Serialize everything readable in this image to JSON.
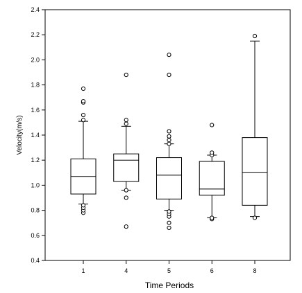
{
  "chart_data": {
    "type": "boxplot",
    "xlabel": "Time Periods",
    "ylabel": "Velocity(m/s)",
    "ylim": [
      0.4,
      2.4
    ],
    "yticks": [
      "0.4",
      "0.6",
      "0.8",
      "1.0",
      "1.2",
      "1.4",
      "1.6",
      "1.8",
      "2.0",
      "2.2",
      "2.4"
    ],
    "categories": [
      "1",
      "4",
      "5",
      "6",
      "8"
    ],
    "boxes": [
      {
        "category": "1",
        "whisker_low": 0.85,
        "q1": 0.93,
        "median": 1.07,
        "q3": 1.21,
        "whisker_high": 1.51,
        "outliers": [
          0.78,
          0.8,
          0.82,
          0.84,
          1.52,
          1.56,
          1.66,
          1.67,
          1.77
        ]
      },
      {
        "category": "4",
        "whisker_low": 0.96,
        "q1": 1.03,
        "median": 1.2,
        "q3": 1.25,
        "whisker_high": 1.47,
        "outliers": [
          0.67,
          0.9,
          0.96,
          1.49,
          1.52,
          1.88
        ]
      },
      {
        "category": "5",
        "whisker_low": 0.8,
        "q1": 0.89,
        "median": 1.08,
        "q3": 1.22,
        "whisker_high": 1.33,
        "outliers": [
          0.66,
          0.7,
          0.75,
          0.77,
          0.79,
          1.33,
          1.36,
          1.39,
          1.43,
          1.88,
          2.04
        ]
      },
      {
        "category": "6",
        "whisker_low": 0.74,
        "q1": 0.92,
        "median": 0.97,
        "q3": 1.19,
        "whisker_high": 1.24,
        "outliers": [
          0.73,
          0.74,
          1.24,
          1.26,
          1.48
        ]
      },
      {
        "category": "8",
        "whisker_low": 0.75,
        "q1": 0.84,
        "median": 1.1,
        "q3": 1.38,
        "whisker_high": 2.15,
        "outliers": [
          0.74,
          2.19
        ]
      }
    ]
  }
}
